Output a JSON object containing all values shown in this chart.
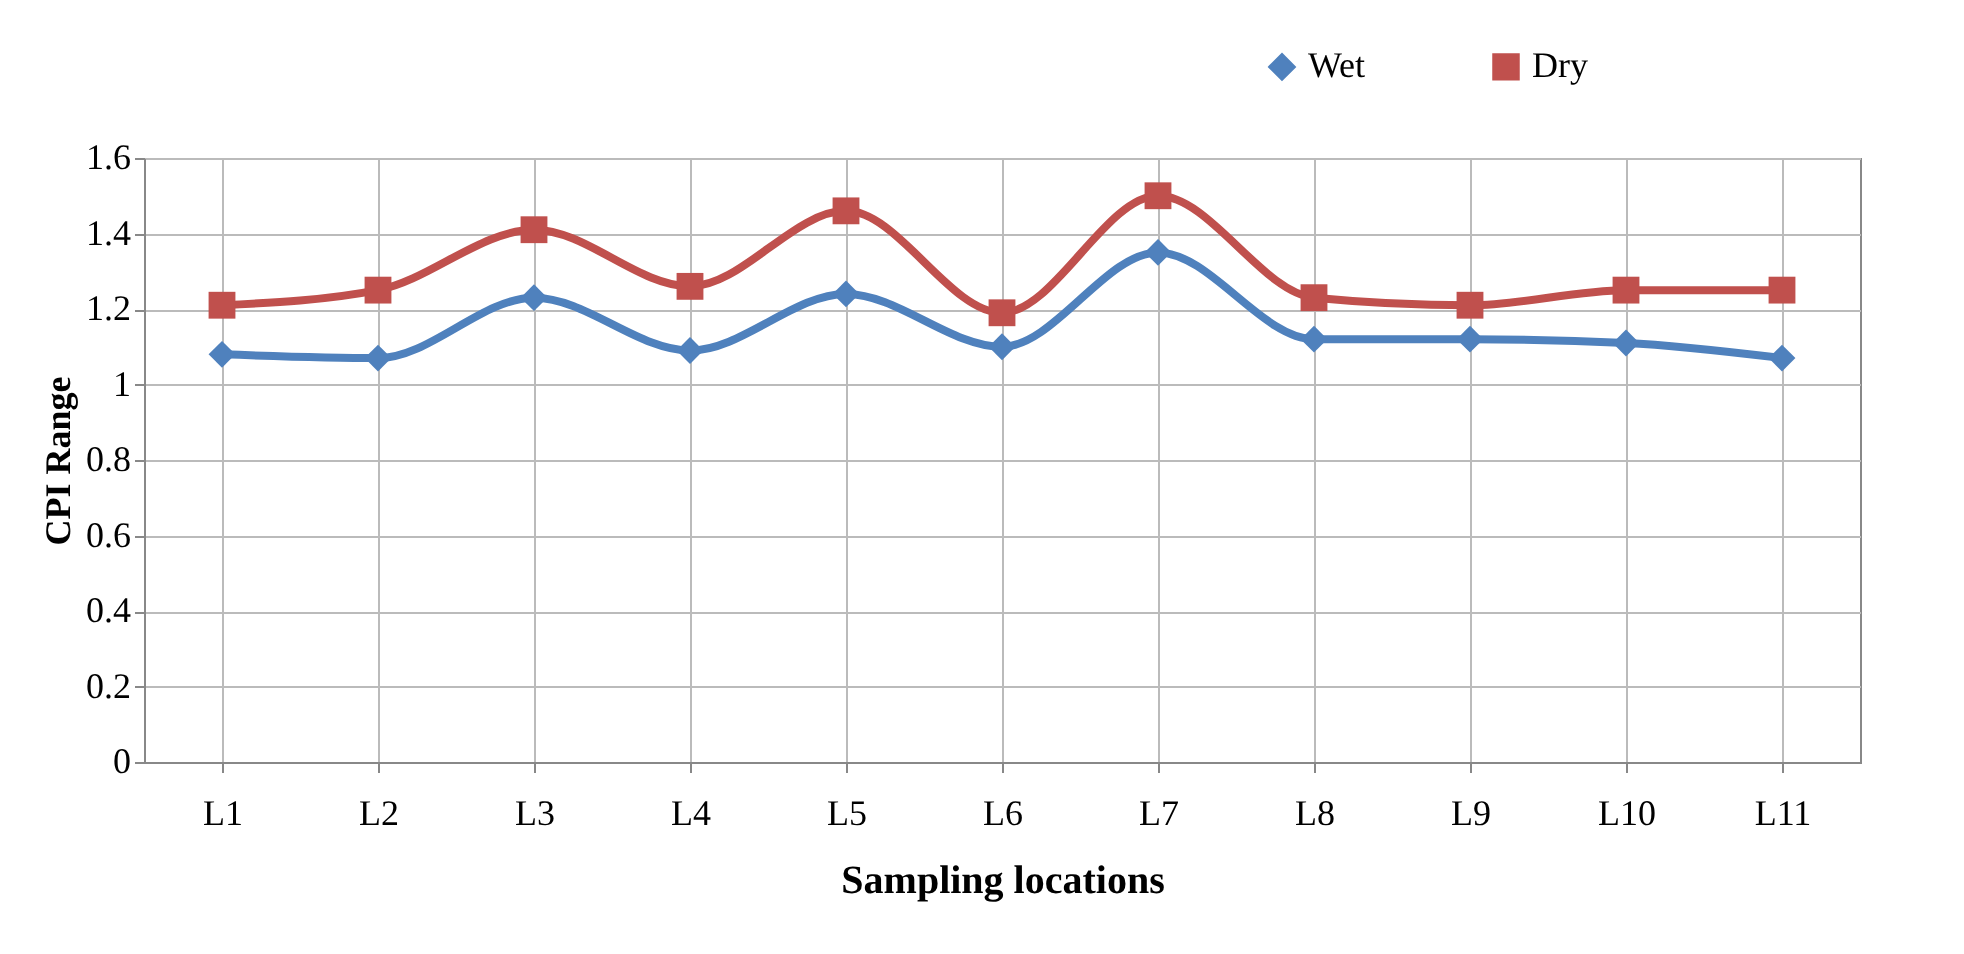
{
  "chart_data": {
    "type": "line",
    "xlabel": "Sampling locations",
    "ylabel": "CPI Range",
    "categories": [
      "L1",
      "L2",
      "L3",
      "L4",
      "L5",
      "L6",
      "L7",
      "L8",
      "L9",
      "L10",
      "L11"
    ],
    "series": [
      {
        "name": "Wet",
        "color": "#4f81bd",
        "marker": "diamond",
        "values": [
          1.08,
          1.07,
          1.23,
          1.09,
          1.24,
          1.1,
          1.35,
          1.12,
          1.12,
          1.11,
          1.07
        ]
      },
      {
        "name": "Dry",
        "color": "#c0504d",
        "marker": "square",
        "values": [
          1.21,
          1.25,
          1.41,
          1.26,
          1.46,
          1.19,
          1.5,
          1.23,
          1.21,
          1.25,
          1.25
        ]
      }
    ],
    "ylim": [
      0,
      1.6
    ],
    "yticks": [
      0,
      0.2,
      0.4,
      0.6,
      0.8,
      1,
      1.2,
      1.4,
      1.6
    ],
    "grid": true,
    "legend": "top right",
    "line_style": "solid"
  }
}
